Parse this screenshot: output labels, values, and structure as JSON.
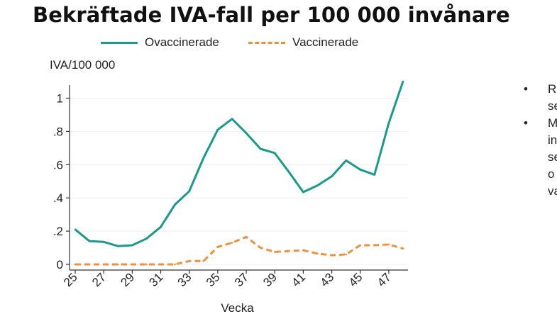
{
  "title": "Bekräftade IVA-fall per 100 000 invånare",
  "colors": {
    "unvaccinated": "#1a9a8a",
    "vaccinated": "#f0903a",
    "axis": "#333333",
    "grid": "#eeeeee"
  },
  "chart_data": {
    "type": "line",
    "xlabel": "Vecka",
    "ylabel": "IVA/100 000",
    "xlim": [
      25,
      48
    ],
    "ylim": [
      0,
      1.1
    ],
    "x_ticks": [
      25,
      27,
      29,
      31,
      33,
      35,
      37,
      39,
      41,
      43,
      45,
      47
    ],
    "y_ticks": [
      0,
      0.2,
      0.4,
      0.6,
      0.8,
      1
    ],
    "y_tick_labels": [
      "0",
      ".2",
      ".4",
      ".6",
      ".8",
      "1"
    ],
    "grid": true,
    "legend_position": "top",
    "x": [
      25,
      26,
      27,
      28,
      29,
      30,
      31,
      32,
      33,
      34,
      35,
      36,
      37,
      38,
      39,
      40,
      41,
      42,
      43,
      44,
      45,
      46,
      47,
      48
    ],
    "series": [
      {
        "name": "Ovaccinerade",
        "style": "solid",
        "values": [
          0.21,
          0.14,
          0.135,
          0.11,
          0.115,
          0.155,
          0.225,
          0.36,
          0.44,
          0.64,
          0.81,
          0.875,
          0.79,
          0.695,
          0.67,
          0.555,
          0.435,
          0.475,
          0.53,
          0.625,
          0.57,
          0.54,
          0.85,
          1.1
        ]
      },
      {
        "name": "Vaccinerade",
        "style": "dashed",
        "values": [
          0,
          0,
          0,
          0,
          0,
          0,
          0,
          0,
          0.02,
          0.02,
          0.105,
          0.13,
          0.165,
          0.1,
          0.075,
          0.08,
          0.085,
          0.065,
          0.055,
          0.06,
          0.115,
          0.115,
          0.12,
          0.095
        ]
      }
    ]
  },
  "bullets": [
    {
      "marker": "•",
      "text": "R\nse"
    },
    {
      "marker": "•",
      "text": "M\nin\nse\no\nva"
    }
  ]
}
